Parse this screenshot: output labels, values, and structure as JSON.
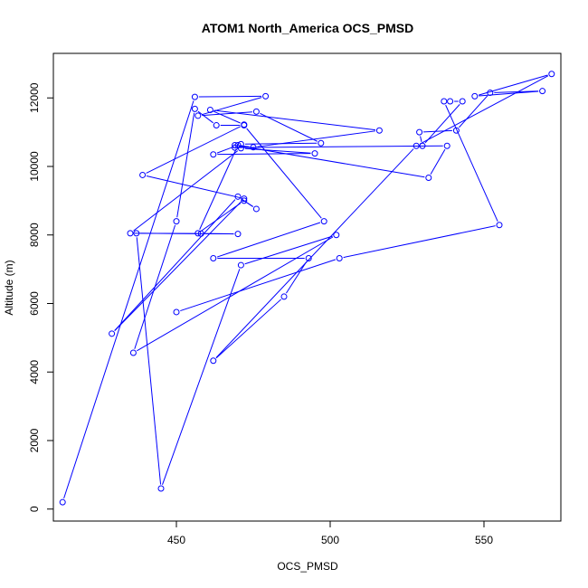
{
  "chart_data": {
    "type": "line",
    "title": "ATOM1 North_America OCS_PMSD",
    "xlabel": "OCS_PMSD",
    "ylabel": "Altitude (m)",
    "xlim": [
      410,
      575
    ],
    "ylim": [
      -350,
      13300
    ],
    "xticks": [
      450,
      500,
      550
    ],
    "yticks": [
      0,
      2000,
      4000,
      6000,
      8000,
      10000,
      12000
    ],
    "grid": false,
    "legend": "none",
    "color": "#0000ff",
    "series": [
      {
        "x": [
          413,
          456,
          479,
          457,
          476,
          497,
          471,
          469,
          538,
          532,
          469,
          475,
          516,
          461,
          472,
          439,
          472,
          429,
          470,
          476,
          472,
          457,
          470,
          462,
          495,
          471,
          435,
          458,
          470,
          437,
          445,
          471,
          502,
          436,
          450,
          456,
          463,
          472,
          498,
          462,
          493,
          485,
          462,
          528,
          572,
          547,
          569,
          552,
          541,
          529,
          530,
          543,
          539,
          537,
          555,
          503,
          450
        ],
        "y": [
          200,
          12030,
          12050,
          11480,
          11600,
          10680,
          10650,
          10550,
          10600,
          9670,
          10620,
          10560,
          11050,
          11650,
          11220,
          9750,
          9060,
          5120,
          9120,
          8760,
          9000,
          8050,
          10620,
          10350,
          10380,
          10530,
          8050,
          8040,
          8030,
          8050,
          600,
          7120,
          8000,
          4560,
          8400,
          11680,
          11200,
          11200,
          8400,
          7320,
          7320,
          6200,
          4330,
          10600,
          12700,
          12050,
          12200,
          12150,
          11050,
          11000,
          10600,
          11900,
          11900,
          11900,
          8290,
          7320,
          5750
        ]
      }
    ]
  }
}
